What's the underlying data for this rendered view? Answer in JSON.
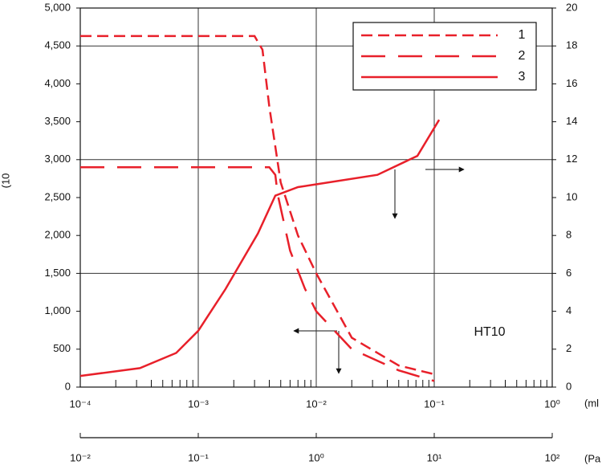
{
  "chart_data": {
    "type": "line",
    "x_label": "(ml",
    "y_label": "(10",
    "x2_label": "(Pa",
    "annotation": "HT10",
    "log_x": true,
    "xlim": [
      0.0001,
      1
    ],
    "xticks": [
      {
        "value": 0.0001,
        "label": "10⁻⁴"
      },
      {
        "value": 0.001,
        "label": "10⁻³"
      },
      {
        "value": 0.01,
        "label": "10⁻²"
      },
      {
        "value": 0.1,
        "label": "10⁻¹"
      },
      {
        "value": 1,
        "label": "10⁰"
      }
    ],
    "x2lim": [
      0.01,
      100
    ],
    "x2ticks": [
      {
        "value": 0.01,
        "label": "10⁻²"
      },
      {
        "value": 0.1,
        "label": "10⁻¹"
      },
      {
        "value": 1,
        "label": "10⁰"
      },
      {
        "value": 10,
        "label": "10¹"
      },
      {
        "value": 100,
        "label": "10²"
      }
    ],
    "ylim": [
      0,
      5000
    ],
    "yticks": [
      0,
      500,
      {
        "value": 1000,
        "label": "1,000"
      },
      {
        "value": 1500,
        "label": "1,500"
      },
      {
        "value": 2000,
        "label": "2,000"
      },
      {
        "value": 2500,
        "label": "2,500"
      },
      {
        "value": 3000,
        "label": "3,000"
      },
      {
        "value": 3500,
        "label": "3,500"
      },
      {
        "value": 4000,
        "label": "4,000"
      },
      {
        "value": 4500,
        "label": "4,500"
      },
      {
        "value": 5000,
        "label": "5,000"
      }
    ],
    "ygrid": [
      1500,
      3000,
      4500
    ],
    "y2lim": [
      0,
      20
    ],
    "y2ticks": [
      0,
      2,
      4,
      6,
      8,
      10,
      12,
      14,
      16,
      18,
      20
    ],
    "legend": "upper right",
    "series": [
      {
        "name": "1",
        "color": "#e8202a",
        "dash": "short",
        "x": [
          0.0001,
          0.003,
          0.0035,
          0.004,
          0.005,
          0.007,
          0.01,
          0.02,
          0.05,
          0.1
        ],
        "values": [
          4630,
          4630,
          4450,
          3700,
          2700,
          2000,
          1500,
          650,
          285,
          170
        ]
      },
      {
        "name": "2",
        "color": "#e8202a",
        "dash": "long",
        "x": [
          0.0001,
          0.004,
          0.0045,
          0.0047,
          0.006,
          0.008,
          0.01,
          0.02,
          0.05,
          0.1
        ],
        "values": [
          2900,
          2900,
          2800,
          2550,
          1800,
          1300,
          1000,
          500,
          220,
          80
        ]
      },
      {
        "name": "3",
        "color": "#e8202a",
        "dash": "solid",
        "axis": "y2",
        "x": [
          0.0001,
          0.00032,
          0.00065,
          0.001,
          0.0017,
          0.0032,
          0.0045,
          0.007,
          0.01,
          0.033,
          0.072,
          0.11
        ],
        "values": [
          0.59,
          1.0,
          1.8,
          2.97,
          5.17,
          8.1,
          10.1,
          10.55,
          10.7,
          11.2,
          12.2,
          14.1
        ]
      }
    ]
  }
}
